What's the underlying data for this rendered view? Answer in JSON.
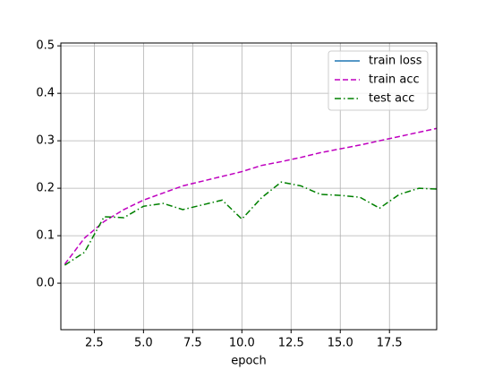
{
  "chart_data": {
    "type": "line",
    "xlabel": "epoch",
    "x": [
      1,
      2,
      3,
      4,
      5,
      6,
      7,
      8,
      9,
      10,
      11,
      12,
      13,
      14,
      15,
      16,
      17,
      18,
      19,
      20
    ],
    "series": [
      {
        "name": "train loss",
        "color": "#1f77b4",
        "dash": "solid",
        "values": [
          null,
          null,
          null,
          null,
          null,
          null,
          null,
          null,
          null,
          null,
          null,
          null,
          null,
          null,
          null,
          null,
          null,
          null,
          null,
          null
        ]
      },
      {
        "name": "train acc",
        "color": "#bf00bf",
        "dash": "dashed",
        "values": [
          0.04,
          0.095,
          0.13,
          0.155,
          0.175,
          0.19,
          0.205,
          0.215,
          0.225,
          0.235,
          0.248,
          0.256,
          0.265,
          0.275,
          0.283,
          0.291,
          0.3,
          0.309,
          0.318,
          0.327
        ]
      },
      {
        "name": "test acc",
        "color": "#008000",
        "dash": "dashdot",
        "values": [
          0.038,
          0.065,
          0.14,
          0.138,
          0.162,
          0.168,
          0.155,
          0.165,
          0.175,
          0.135,
          0.18,
          0.213,
          0.205,
          0.187,
          0.185,
          0.181,
          0.158,
          0.187,
          0.2,
          0.198
        ]
      }
    ],
    "xlim": [
      0.8,
      19.9
    ],
    "ylim": [
      -0.098,
      0.506
    ],
    "xticks": [
      2.5,
      {
        "value": 5,
        "label": "5.0"
      },
      7.5,
      {
        "value": 10,
        "label": "10.0"
      },
      12.5,
      {
        "value": 15,
        "label": "15.0"
      },
      17.5
    ],
    "yticks": [
      {
        "value": 0,
        "label": "0.0"
      },
      0.1,
      0.2,
      0.3,
      0.4,
      0.5
    ],
    "grid": true,
    "legend": "upper right"
  }
}
